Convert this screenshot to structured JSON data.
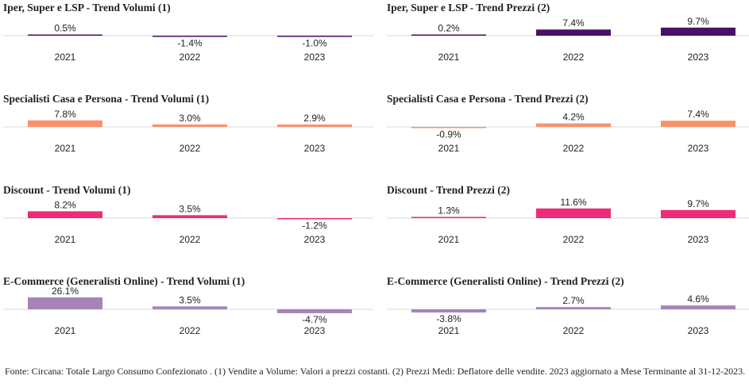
{
  "colors": {
    "iper": "#4a1066",
    "specialisti": "#f7936b",
    "discount": "#ee2b78",
    "ecommerce": "#a684b8",
    "axis": "#d9d9d9"
  },
  "chart_data": [
    {
      "type": "bar",
      "title": "Iper, Super e LSP - Trend Volumi (1)",
      "categories": [
        "2021",
        "2022",
        "2023"
      ],
      "values": [
        0.5,
        -1.4,
        -1.0
      ],
      "labels": [
        "0.5%",
        "-1.4%",
        "-1.0%"
      ],
      "color": "#4a1066"
    },
    {
      "type": "bar",
      "title": "Iper, Super e LSP - Trend Prezzi (2)",
      "categories": [
        "2021",
        "2022",
        "2023"
      ],
      "values": [
        0.2,
        7.4,
        9.7
      ],
      "labels": [
        "0.2%",
        "7.4%",
        "9.7%"
      ],
      "color": "#4a1066"
    },
    {
      "type": "bar",
      "title": "Specialisti Casa e Persona - Trend Volumi (1)",
      "categories": [
        "2021",
        "2022",
        "2023"
      ],
      "values": [
        7.8,
        3.0,
        2.9
      ],
      "labels": [
        "7.8%",
        "3.0%",
        "2.9%"
      ],
      "color": "#f7936b"
    },
    {
      "type": "bar",
      "title": "Specialisti Casa e Persona - Trend Prezzi (2)",
      "categories": [
        "2021",
        "2022",
        "2023"
      ],
      "values": [
        -0.9,
        4.2,
        7.4
      ],
      "labels": [
        "-0.9%",
        "4.2%",
        "7.4%"
      ],
      "color": "#f7936b"
    },
    {
      "type": "bar",
      "title": "Discount - Trend Volumi (1)",
      "categories": [
        "2021",
        "2022",
        "2023"
      ],
      "values": [
        8.2,
        3.5,
        -1.2
      ],
      "labels": [
        "8.2%",
        "3.5%",
        "-1.2%"
      ],
      "color": "#ee2b78"
    },
    {
      "type": "bar",
      "title": "Discount - Trend Prezzi (2)",
      "categories": [
        "2021",
        "2022",
        "2023"
      ],
      "values": [
        1.3,
        11.6,
        9.7
      ],
      "labels": [
        "1.3%",
        "11.6%",
        "9.7%"
      ],
      "color": "#ee2b78"
    },
    {
      "type": "bar",
      "title": "E-Commerce (Generalisti Online) - Trend Volumi (1)",
      "categories": [
        "2021",
        "2022",
        "2023"
      ],
      "values": [
        26.1,
        3.5,
        -4.7
      ],
      "labels": [
        "26.1%",
        "3.5%",
        "-4.7%"
      ],
      "color": "#a684b8"
    },
    {
      "type": "bar",
      "title": "E-Commerce (Generalisti Online) - Trend Prezzi (2)",
      "categories": [
        "2021",
        "2022",
        "2023"
      ],
      "values": [
        -3.8,
        2.7,
        4.6
      ],
      "labels": [
        "-3.8%",
        "2.7%",
        "4.6%"
      ],
      "color": "#a684b8"
    }
  ],
  "footnote": "Fonte: Circana: Totale Largo Consumo Confezionato . (1) Vendite a Volume: Valori a prezzi costanti. (2) Prezzi Medi: Deflatore delle vendite. 2023 aggiornato a Mese Terminante al 31-12-2023."
}
